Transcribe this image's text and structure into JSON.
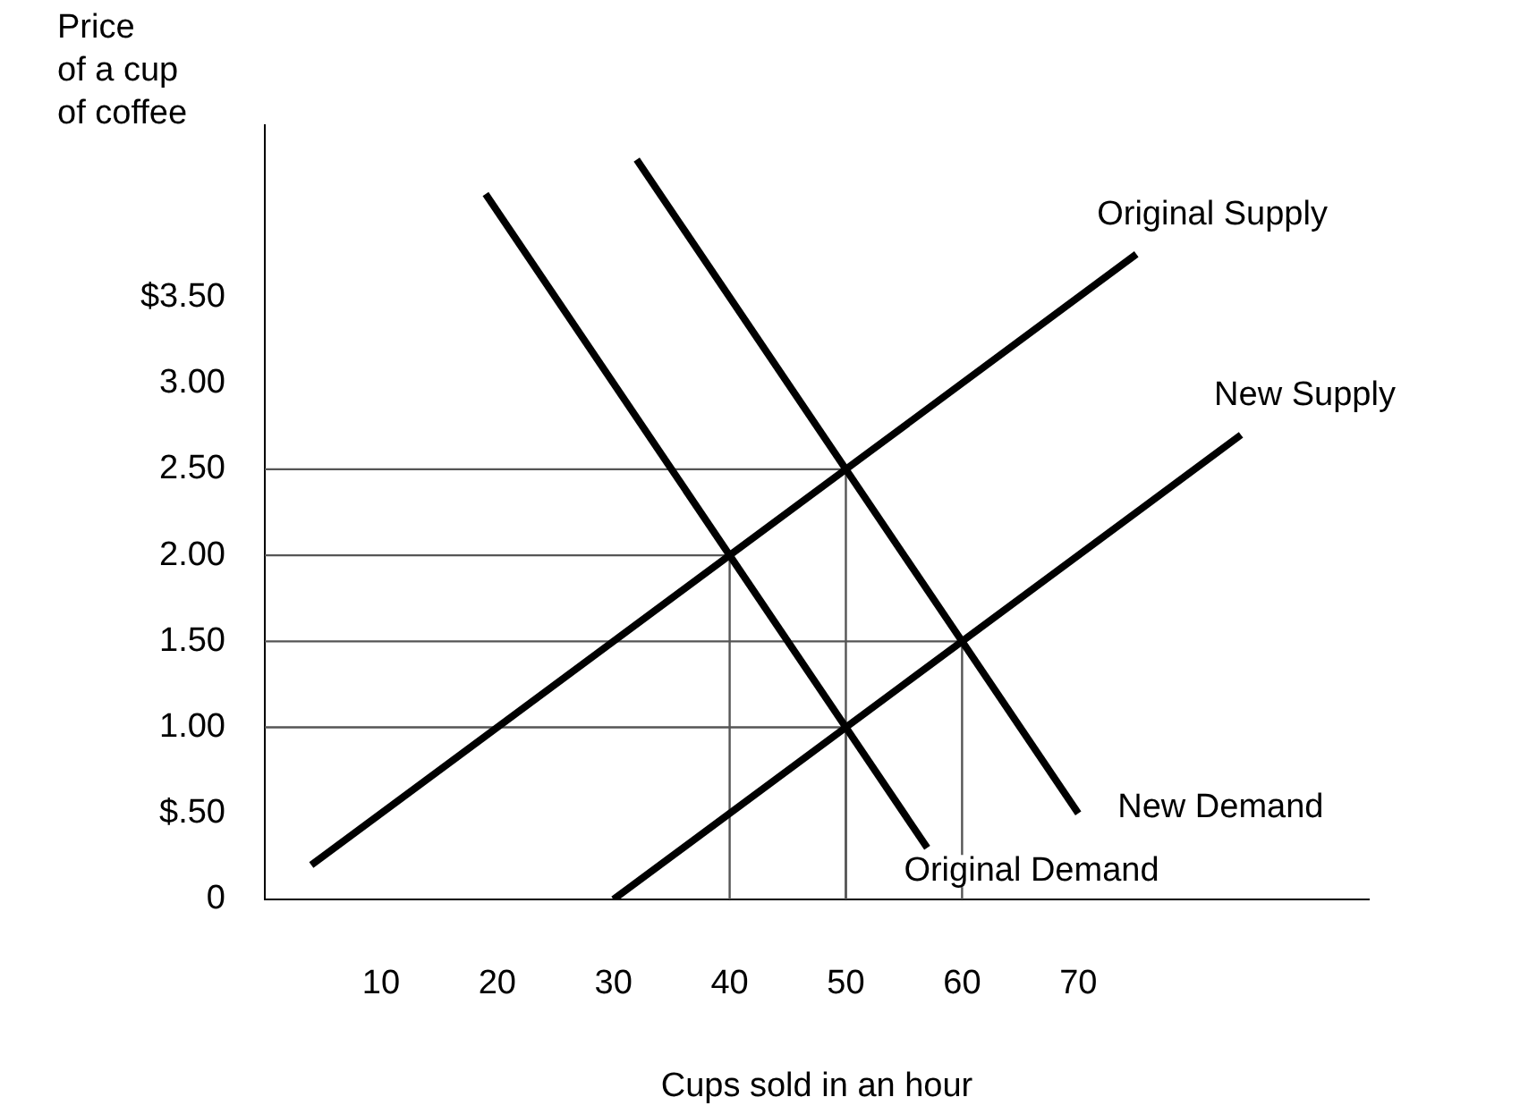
{
  "chart_data": {
    "type": "line",
    "xlabel": "Cups sold in an hour",
    "ylabel": "Price\nof a cup\nof coffee",
    "xlim": [
      0,
      95
    ],
    "xticks": [
      10,
      20,
      30,
      40,
      50,
      60,
      70
    ],
    "ylim": [
      0,
      4.5
    ],
    "yticks": [
      {
        "value": 0,
        "label": "0"
      },
      {
        "value": 0.5,
        "label": "$.50"
      },
      {
        "value": 1,
        "label": "1.00"
      },
      {
        "value": 1.5,
        "label": "1.50"
      },
      {
        "value": 2,
        "label": "2.00"
      },
      {
        "value": 2.5,
        "label": "2.50"
      },
      {
        "value": 3,
        "label": "3.00"
      },
      {
        "value": 3.5,
        "label": "$3.50"
      }
    ],
    "grid": false,
    "legend": false,
    "marker": "none",
    "line_style": "solid",
    "series": [
      {
        "name": "Original Supply",
        "color": "#000000",
        "x": [
          4,
          75
        ],
        "values": [
          0.2,
          3.75
        ]
      },
      {
        "name": "New Supply",
        "color": "#000000",
        "x": [
          30,
          84
        ],
        "values": [
          0,
          2.7
        ]
      },
      {
        "name": "New Demand",
        "color": "#000000",
        "x": [
          32,
          70
        ],
        "values": [
          4.3,
          0.5
        ]
      },
      {
        "name": "Original Demand",
        "color": "#000000",
        "x": [
          19,
          57
        ],
        "values": [
          4.1,
          0.3
        ]
      },
      {
        "color": "#555555",
        "x": [
          0,
          40,
          40
        ],
        "values": [
          2,
          2,
          0
        ]
      },
      {
        "color": "#555555",
        "x": [
          0,
          50,
          50
        ],
        "values": [
          2.5,
          2.5,
          0
        ]
      },
      {
        "color": "#555555",
        "x": [
          0,
          50,
          50
        ],
        "values": [
          1,
          1,
          0
        ]
      },
      {
        "color": "#555555",
        "x": [
          0,
          60,
          60
        ],
        "values": [
          1.5,
          1.5,
          0
        ]
      }
    ]
  }
}
